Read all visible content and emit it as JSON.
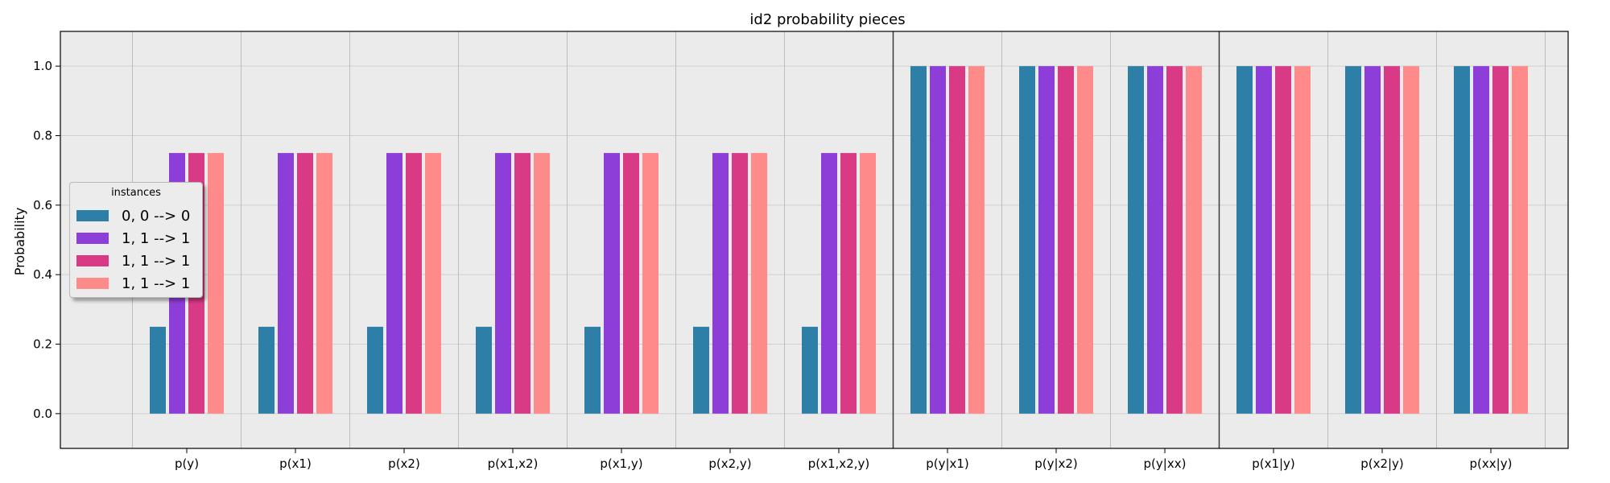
{
  "chart_data": {
    "type": "bar",
    "title": "id2 probability pieces",
    "xlabel": "",
    "ylabel": "Probability",
    "ylim": [
      -0.1,
      1.1
    ],
    "yticks": [
      "0.0",
      "0.2",
      "0.4",
      "0.6",
      "0.8",
      "1.0"
    ],
    "grid": true,
    "legend_title": "instances",
    "legend_position": "center-left",
    "categories": [
      "p(y)",
      "p(x1)",
      "p(x2)",
      "p(x1,x2)",
      "p(x1,y)",
      "p(x2,y)",
      "p(x1,x2,y)",
      "p(y|x1)",
      "p(y|x2)",
      "p(y|xx)",
      "p(x1|y)",
      "p(x2|y)",
      "p(xx|y)"
    ],
    "group_separators_after": [
      "p(x1,x2,y)",
      "p(y|xx)"
    ],
    "series": [
      {
        "name": "0, 0 --> 0",
        "color": "#2e7fa8",
        "values": [
          0.25,
          0.25,
          0.25,
          0.25,
          0.25,
          0.25,
          0.25,
          1.0,
          1.0,
          1.0,
          1.0,
          1.0,
          1.0
        ]
      },
      {
        "name": "1, 1 --> 1",
        "color": "#8e3ed8",
        "values": [
          0.75,
          0.75,
          0.75,
          0.75,
          0.75,
          0.75,
          0.75,
          1.0,
          1.0,
          1.0,
          1.0,
          1.0,
          1.0
        ]
      },
      {
        "name": "1, 1 --> 1",
        "color": "#d83a86",
        "values": [
          0.75,
          0.75,
          0.75,
          0.75,
          0.75,
          0.75,
          0.75,
          1.0,
          1.0,
          1.0,
          1.0,
          1.0,
          1.0
        ]
      },
      {
        "name": "1, 1 --> 1",
        "color": "#ff8a8a",
        "values": [
          0.75,
          0.75,
          0.75,
          0.75,
          0.75,
          0.75,
          0.75,
          1.0,
          1.0,
          1.0,
          1.0,
          1.0,
          1.0
        ]
      }
    ]
  }
}
